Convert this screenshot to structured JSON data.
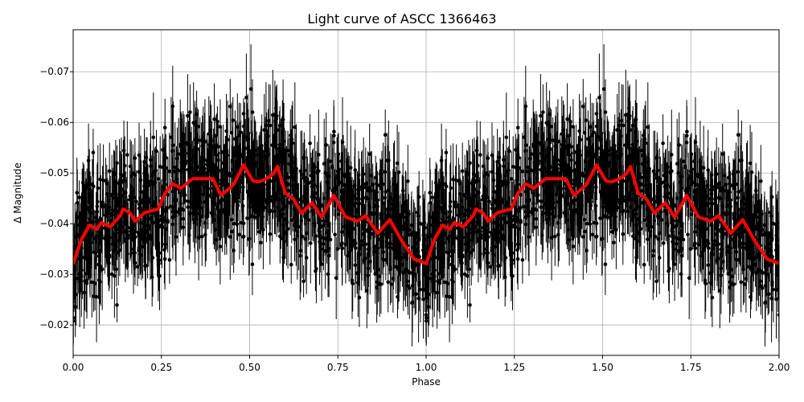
{
  "chart_data": {
    "type": "scatter",
    "title": "Light curve of ASCC 1366463",
    "xlabel": "Phase",
    "ylabel": "Δ Magnitude",
    "xlim": [
      0.0,
      2.0
    ],
    "ylim": [
      -0.014,
      -0.0783
    ],
    "y_inverted": true,
    "grid": true,
    "legend": null,
    "xticks": [
      "0.00",
      "0.25",
      "0.50",
      "0.75",
      "1.00",
      "1.25",
      "1.50",
      "1.75",
      "2.00"
    ],
    "xtick_values": [
      0.0,
      0.25,
      0.5,
      0.75,
      1.0,
      1.25,
      1.5,
      1.75,
      2.0
    ],
    "yticks": [
      "−0.07",
      "−0.06",
      "−0.05",
      "−0.04",
      "−0.03",
      "−0.02"
    ],
    "ytick_values": [
      -0.07,
      -0.06,
      -0.05,
      -0.04,
      -0.03,
      -0.02
    ],
    "series": [
      {
        "name": "observations",
        "type": "errorbar",
        "color": "#000000",
        "description": "Dense cloud of phase-folded points with vertical error bars, spanning roughly -0.078 to -0.014 mag, centered on the model curve; repeated for phase 1-2"
      },
      {
        "name": "binned model",
        "type": "line",
        "color": "#ff0000",
        "linewidth": 4,
        "phase": [
          0.0,
          0.023,
          0.046,
          0.066,
          0.08,
          0.105,
          0.134,
          0.141,
          0.162,
          0.175,
          0.203,
          0.241,
          0.26,
          0.282,
          0.305,
          0.339,
          0.374,
          0.396,
          0.419,
          0.453,
          0.483,
          0.51,
          0.526,
          0.544,
          0.567,
          0.579,
          0.601,
          0.624,
          0.647,
          0.677,
          0.704,
          0.738,
          0.772,
          0.806,
          0.829,
          0.863,
          0.897,
          0.932,
          0.966,
          0.998
        ],
        "values": [
          -0.0321,
          -0.0368,
          -0.0397,
          -0.0389,
          -0.0402,
          -0.0394,
          -0.0416,
          -0.0429,
          -0.0421,
          -0.0405,
          -0.0422,
          -0.0429,
          -0.046,
          -0.0479,
          -0.047,
          -0.0489,
          -0.0489,
          -0.0489,
          -0.0456,
          -0.0476,
          -0.0516,
          -0.0484,
          -0.0483,
          -0.0487,
          -0.0498,
          -0.0513,
          -0.046,
          -0.0449,
          -0.0421,
          -0.0441,
          -0.0413,
          -0.0456,
          -0.0413,
          -0.0405,
          -0.0416,
          -0.0381,
          -0.0408,
          -0.0365,
          -0.033,
          -0.0322
        ],
        "repeats_for_phase_1_to_2": true
      }
    ]
  },
  "colors": {
    "background": "#ffffff",
    "grid": "#b0b0b0",
    "points": "#000000",
    "model": "#ff0000"
  }
}
